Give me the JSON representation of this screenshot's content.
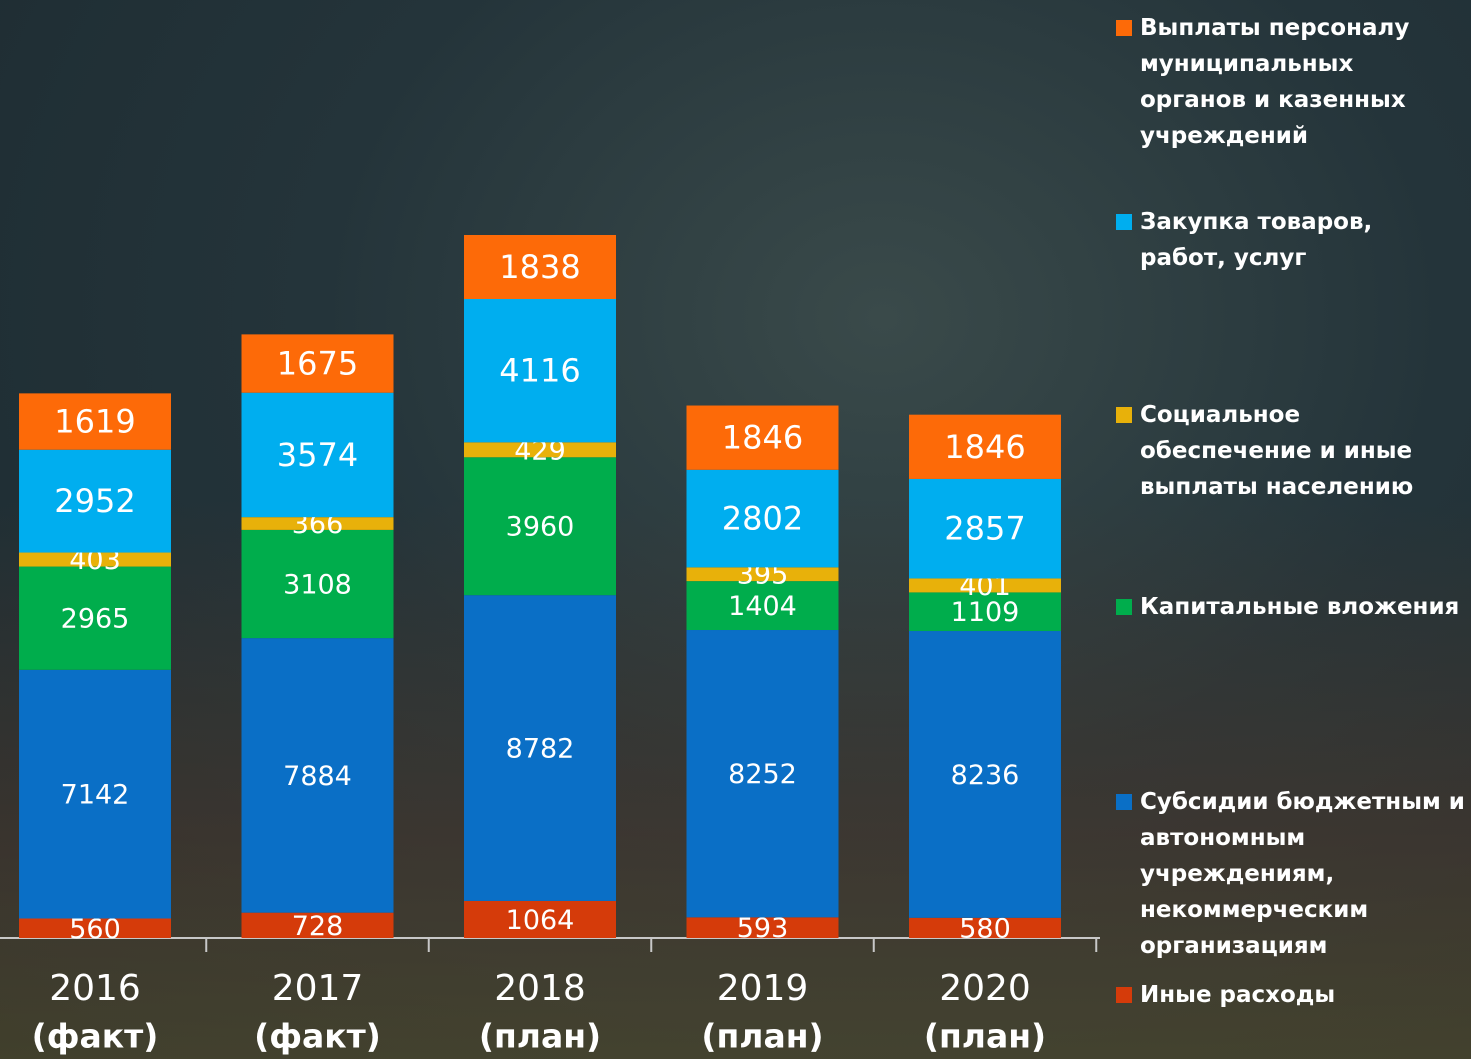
{
  "chart_data": {
    "type": "stacked_bar",
    "categories": [
      [
        "2016",
        "(факт)"
      ],
      [
        "2017",
        "(факт)"
      ],
      [
        "2018",
        "(план)"
      ],
      [
        "2019",
        "(план)"
      ],
      [
        "2020",
        "(план)"
      ]
    ],
    "series": [
      {
        "name": "Иные расходы",
        "color": "#d53b0a",
        "values": [
          560,
          728,
          1064,
          593,
          580
        ]
      },
      {
        "name": "Субсидии бюджетным и автономным учреждениям, некоммерческим организациям",
        "color": "#0a6fc6",
        "values": [
          7142,
          7884,
          8782,
          8252,
          8236
        ]
      },
      {
        "name": "Капитальные вложения",
        "color": "#00ad4c",
        "values": [
          2965,
          3108,
          3960,
          1404,
          1109
        ]
      },
      {
        "name": "Социальное обеспечение и иные выплаты населению",
        "color": "#e8b10a",
        "values": [
          403,
          366,
          429,
          395,
          401
        ]
      },
      {
        "name": "Закупка товаров, работ, услуг",
        "color": "#00aeef",
        "values": [
          2952,
          3574,
          4116,
          2802,
          2857
        ]
      },
      {
        "name": "Выплаты персоналу муниципальных органов и казенных учреждений",
        "color": "#fd6a08",
        "values": [
          1619,
          1675,
          1838,
          1846,
          1846
        ]
      }
    ]
  }
}
